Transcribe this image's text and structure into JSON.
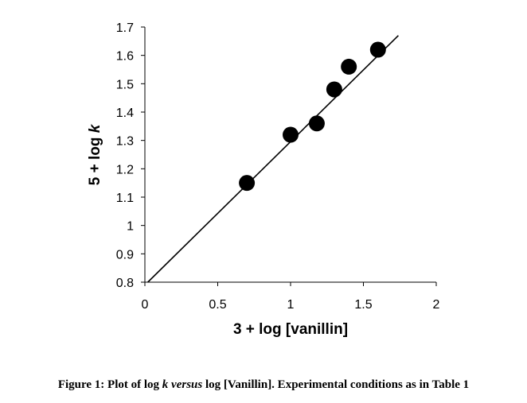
{
  "chart_data": {
    "type": "scatter",
    "xlabel": "3 + log [vanillin]",
    "ylabel_prefix": "5 + log ",
    "ylabel_var": "k",
    "xlim": [
      0,
      2
    ],
    "ylim": [
      0.8,
      1.7
    ],
    "x_ticks": [
      "0",
      "0.5",
      "1",
      "1.5",
      "2"
    ],
    "y_ticks": [
      "0.8",
      "0.9",
      "1",
      "1.1",
      "1.2",
      "1.3",
      "1.4",
      "1.5",
      "1.6",
      "1.7"
    ],
    "grid": false,
    "legend": "none",
    "marker_color": "#000000",
    "points": [
      {
        "x": 0.7,
        "y": 1.15
      },
      {
        "x": 1.0,
        "y": 1.32
      },
      {
        "x": 1.18,
        "y": 1.36
      },
      {
        "x": 1.3,
        "y": 1.48
      },
      {
        "x": 1.4,
        "y": 1.56
      },
      {
        "x": 1.6,
        "y": 1.62
      }
    ],
    "fit_line": {
      "x_start": 0.02,
      "y_start": 0.8,
      "x_end": 1.74,
      "y_end": 1.67
    }
  },
  "caption": {
    "part1": "Figure 1: Plot of log ",
    "italic1": "k versus",
    "part2": " log [Vanillin]. Experimental conditions as in Table 1"
  }
}
